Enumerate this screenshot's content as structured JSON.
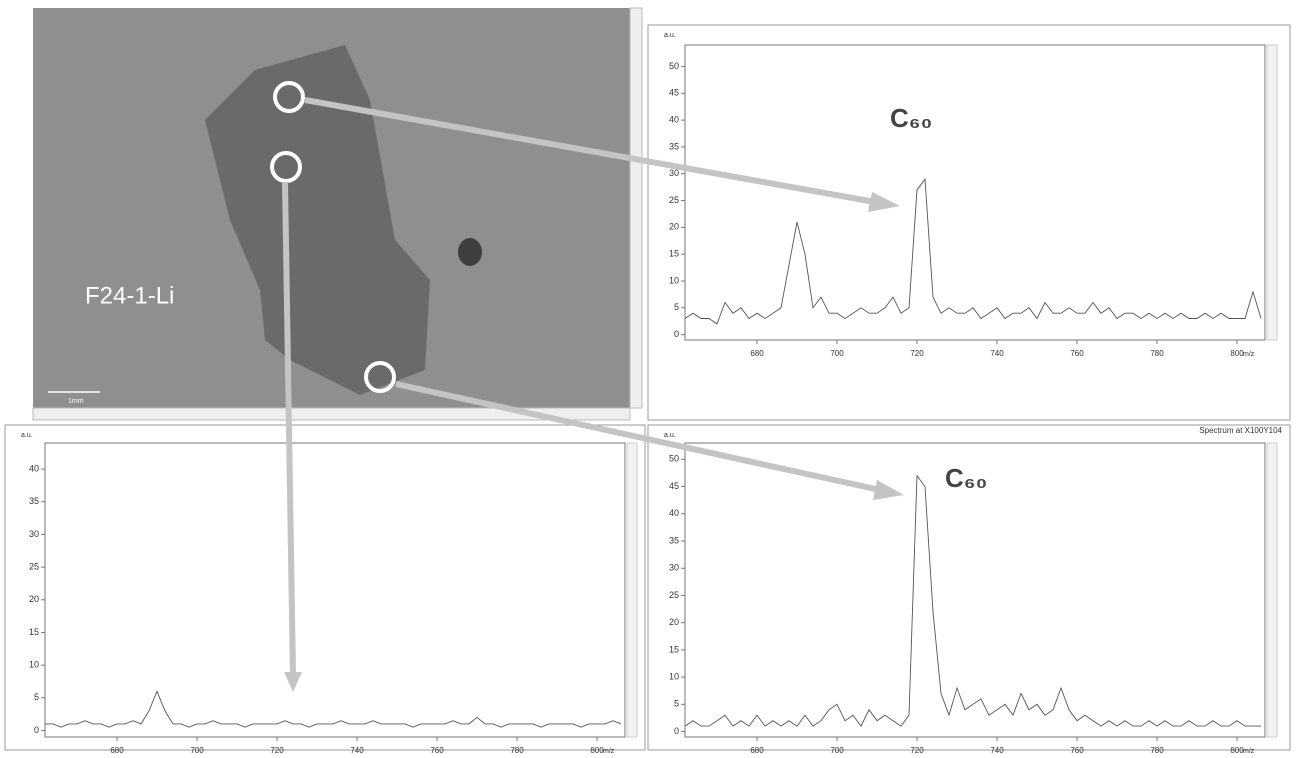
{
  "image": {
    "label": "F24-1-Li",
    "scale_label": "1mm"
  },
  "chart_data": [
    {
      "type": "line",
      "title": null,
      "annotation": "C₆₀",
      "ylabel": "a.u.",
      "xlabel": "m/z",
      "color": "#555555",
      "xlim": [
        662,
        807
      ],
      "ylim": [
        -1,
        54
      ],
      "xticks": [
        680,
        700,
        720,
        740,
        760,
        780,
        800
      ],
      "yticks": [
        0,
        5,
        10,
        15,
        20,
        25,
        30,
        35,
        40,
        45,
        50
      ],
      "x": [
        662,
        664,
        666,
        668,
        670,
        672,
        674,
        676,
        678,
        680,
        682,
        684,
        686,
        688,
        690,
        692,
        694,
        696,
        698,
        700,
        702,
        704,
        706,
        708,
        710,
        712,
        714,
        716,
        718,
        720,
        722,
        724,
        726,
        728,
        730,
        732,
        734,
        736,
        738,
        740,
        742,
        744,
        746,
        748,
        750,
        752,
        754,
        756,
        758,
        760,
        762,
        764,
        766,
        768,
        770,
        772,
        774,
        776,
        778,
        780,
        782,
        784,
        786,
        788,
        790,
        792,
        794,
        796,
        798,
        800,
        802,
        804,
        806
      ],
      "values": [
        3,
        4,
        3,
        3,
        2,
        6,
        4,
        5,
        3,
        4,
        3,
        4,
        5,
        13,
        21,
        15,
        5,
        7,
        4,
        4,
        3,
        4,
        5,
        4,
        4,
        5,
        7,
        4,
        5,
        27,
        29,
        7,
        4,
        5,
        4,
        4,
        5,
        3,
        4,
        5,
        3,
        4,
        4,
        5,
        3,
        6,
        4,
        4,
        5,
        4,
        4,
        6,
        4,
        5,
        3,
        4,
        4,
        3,
        4,
        3,
        4,
        3,
        4,
        3,
        3,
        4,
        3,
        4,
        3,
        3,
        3,
        8,
        3
      ]
    },
    {
      "type": "line",
      "title": null,
      "ylabel": "a.u.",
      "xlabel": "m/z",
      "color": "#555555",
      "xlim": [
        662,
        807
      ],
      "ylim": [
        -1,
        44
      ],
      "xticks": [
        680,
        700,
        720,
        740,
        760,
        780,
        800
      ],
      "yticks": [
        0,
        5,
        10,
        15,
        20,
        25,
        30,
        35,
        40
      ],
      "x": [
        662,
        664,
        666,
        668,
        670,
        672,
        674,
        676,
        678,
        680,
        682,
        684,
        686,
        688,
        690,
        692,
        694,
        696,
        698,
        700,
        702,
        704,
        706,
        708,
        710,
        712,
        714,
        716,
        718,
        720,
        722,
        724,
        726,
        728,
        730,
        732,
        734,
        736,
        738,
        740,
        742,
        744,
        746,
        748,
        750,
        752,
        754,
        756,
        758,
        760,
        762,
        764,
        766,
        768,
        770,
        772,
        774,
        776,
        778,
        780,
        782,
        784,
        786,
        788,
        790,
        792,
        794,
        796,
        798,
        800,
        802,
        804,
        806
      ],
      "values": [
        1,
        1,
        0.5,
        1,
        1,
        1.5,
        1,
        1,
        0.5,
        1,
        1,
        1.5,
        1,
        3,
        6,
        3,
        1,
        1,
        0.5,
        1,
        1,
        1.5,
        1,
        1,
        1,
        0.5,
        1,
        1,
        1,
        1,
        1.5,
        1,
        1,
        0.5,
        1,
        1,
        1,
        1.5,
        1,
        1,
        1,
        1.5,
        1,
        1,
        1,
        1,
        0.5,
        1,
        1,
        1,
        1,
        1.5,
        1,
        1,
        2,
        1,
        1,
        0.5,
        1,
        1,
        1,
        1,
        0.5,
        1,
        1,
        1,
        1,
        0.5,
        1,
        1,
        1,
        1.5,
        1
      ]
    },
    {
      "type": "line",
      "title": "Spectrum at X100Y104",
      "annotation": "C₆₀",
      "ylabel": "a.u.",
      "xlabel": "m/z",
      "color": "#555555",
      "xlim": [
        662,
        807
      ],
      "ylim": [
        -1,
        53
      ],
      "xticks": [
        680,
        700,
        720,
        740,
        760,
        780,
        800
      ],
      "yticks": [
        0,
        5,
        10,
        15,
        20,
        25,
        30,
        35,
        40,
        45,
        50
      ],
      "x": [
        662,
        664,
        666,
        668,
        670,
        672,
        674,
        676,
        678,
        680,
        682,
        684,
        686,
        688,
        690,
        692,
        694,
        696,
        698,
        700,
        702,
        704,
        706,
        708,
        710,
        712,
        714,
        716,
        718,
        720,
        722,
        724,
        726,
        728,
        730,
        732,
        734,
        736,
        738,
        740,
        742,
        744,
        746,
        748,
        750,
        752,
        754,
        756,
        758,
        760,
        762,
        764,
        766,
        768,
        770,
        772,
        774,
        776,
        778,
        780,
        782,
        784,
        786,
        788,
        790,
        792,
        794,
        796,
        798,
        800,
        802,
        804,
        806
      ],
      "values": [
        1,
        2,
        1,
        1,
        2,
        3,
        1,
        2,
        1,
        3,
        1,
        2,
        1,
        2,
        1,
        3,
        1,
        2,
        4,
        5,
        2,
        3,
        1,
        4,
        2,
        3,
        2,
        1,
        3,
        47,
        45,
        22,
        7,
        3,
        8,
        4,
        5,
        6,
        3,
        4,
        5,
        3,
        7,
        4,
        5,
        3,
        4,
        8,
        4,
        2,
        3,
        2,
        1,
        2,
        1,
        2,
        1,
        1,
        2,
        1,
        2,
        1,
        1,
        2,
        1,
        1,
        2,
        1,
        1,
        2,
        1,
        1,
        1
      ]
    }
  ]
}
